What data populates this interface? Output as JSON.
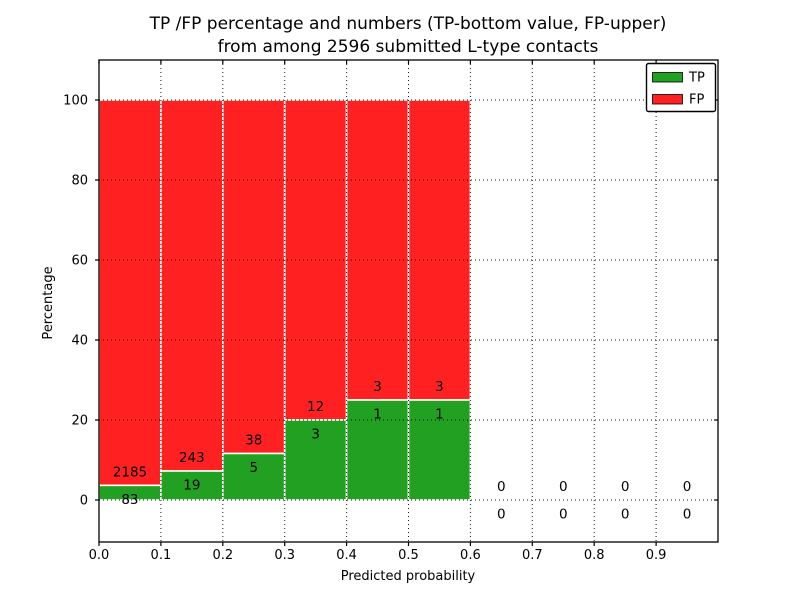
{
  "figure": {
    "title_line1": "TP /FP percentage and numbers (TP-bottom value, FP-upper)",
    "title_line2": "from among 2596 submitted L-type contacts"
  },
  "chart_data": {
    "type": "bar",
    "stacked": true,
    "title": "TP /FP percentage and numbers (TP-bottom value, FP-upper) from among 2596 submitted L-type contacts",
    "total_submitted": 2596,
    "xlabel": "Predicted probability",
    "ylabel": "Percentage",
    "xlim": [
      0.0,
      1.0
    ],
    "ylim": [
      -10.5,
      110
    ],
    "x_tick_labels": [
      "0.0",
      "0.1",
      "0.2",
      "0.3",
      "0.4",
      "0.5",
      "0.6",
      "0.7",
      "0.8",
      "0.9"
    ],
    "x_tick_values": [
      0.0,
      0.1,
      0.2,
      0.3,
      0.4,
      0.5,
      0.6,
      0.7,
      0.8,
      0.9
    ],
    "y_tick_values": [
      0,
      20,
      40,
      60,
      80,
      100
    ],
    "grid": {
      "style": "dotted",
      "drawn_above_bars": true
    },
    "bin_width": 0.1,
    "bins": [
      {
        "range": [
          0.0,
          0.1
        ],
        "tp": 83,
        "fp": 2185,
        "tp_pct": 3.66,
        "fp_pct": 96.34
      },
      {
        "range": [
          0.1,
          0.2
        ],
        "tp": 19,
        "fp": 243,
        "tp_pct": 7.25,
        "fp_pct": 92.75
      },
      {
        "range": [
          0.2,
          0.3
        ],
        "tp": 5,
        "fp": 38,
        "tp_pct": 11.63,
        "fp_pct": 88.37
      },
      {
        "range": [
          0.3,
          0.4
        ],
        "tp": 3,
        "fp": 12,
        "tp_pct": 20.0,
        "fp_pct": 80.0
      },
      {
        "range": [
          0.4,
          0.5
        ],
        "tp": 1,
        "fp": 3,
        "tp_pct": 25.0,
        "fp_pct": 75.0
      },
      {
        "range": [
          0.5,
          0.6
        ],
        "tp": 1,
        "fp": 3,
        "tp_pct": 25.0,
        "fp_pct": 75.0
      },
      {
        "range": [
          0.6,
          0.7
        ],
        "tp": 0,
        "fp": 0,
        "tp_pct": 0,
        "fp_pct": 0
      },
      {
        "range": [
          0.7,
          0.8
        ],
        "tp": 0,
        "fp": 0,
        "tp_pct": 0,
        "fp_pct": 0
      },
      {
        "range": [
          0.8,
          0.9
        ],
        "tp": 0,
        "fp": 0,
        "tp_pct": 0,
        "fp_pct": 0
      },
      {
        "range": [
          0.9,
          1.0
        ],
        "tp": 0,
        "fp": 0,
        "tp_pct": 0,
        "fp_pct": 0
      }
    ],
    "legend": {
      "position": "upper right",
      "entries": [
        {
          "label": "TP",
          "color": "#22a022"
        },
        {
          "label": "FP",
          "color": "#ff2121"
        }
      ]
    },
    "colors": {
      "tp": "#22a022",
      "fp": "#ff2121",
      "bar_edge": "#ffffff",
      "grid": "#000000",
      "background": "#ffffff",
      "text": "#000000"
    }
  }
}
